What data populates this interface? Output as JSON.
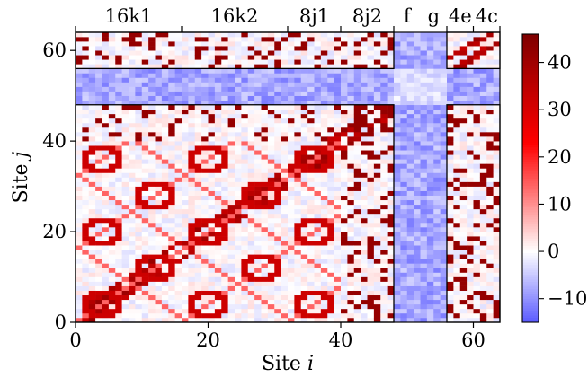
{
  "chart_data": {
    "type": "heatmap",
    "xlabel": "Site i",
    "ylabel": "Site j",
    "x_ticks": [
      0,
      20,
      40,
      60
    ],
    "y_ticks": [
      0,
      20,
      40,
      60
    ],
    "xlim": [
      0,
      64
    ],
    "ylim": [
      0,
      64
    ],
    "grid": false,
    "colorbar": {
      "ticks": [
        -10,
        0,
        10,
        20,
        30,
        40
      ],
      "min": -15,
      "max": 46,
      "colormap": "bwr"
    },
    "region_boundaries": [
      0,
      16,
      32,
      40,
      48,
      56,
      60,
      64
    ],
    "regions": [
      {
        "name": "16k1",
        "start": 0,
        "end": 16
      },
      {
        "name": "16k2",
        "start": 16,
        "end": 32
      },
      {
        "name": "8j1",
        "start": 32,
        "end": 40
      },
      {
        "name": "8j2",
        "start": 40,
        "end": 48
      },
      {
        "name": "f",
        "start": 48,
        "end": 52
      },
      {
        "name": "g",
        "start": 52,
        "end": 56
      },
      {
        "name": "4e",
        "start": 56,
        "end": 60
      },
      {
        "name": "4c",
        "start": 60,
        "end": 64
      }
    ],
    "block_outlines": [
      {
        "x": [
          0,
          48
        ],
        "y": [
          0,
          48
        ]
      },
      {
        "x": [
          0,
          48
        ],
        "y": [
          56,
          64
        ]
      },
      {
        "x": [
          56,
          64
        ],
        "y": [
          0,
          48
        ]
      },
      {
        "x": [
          56,
          64
        ],
        "y": [
          56,
          64
        ]
      }
    ],
    "grid_size": [
      64,
      64
    ],
    "approximate_patterns": {
      "diagonal_values": 42,
      "ring_values": 32,
      "diagonal_line_values": 14,
      "cross_block_values": -8,
      "background": 0
    }
  }
}
